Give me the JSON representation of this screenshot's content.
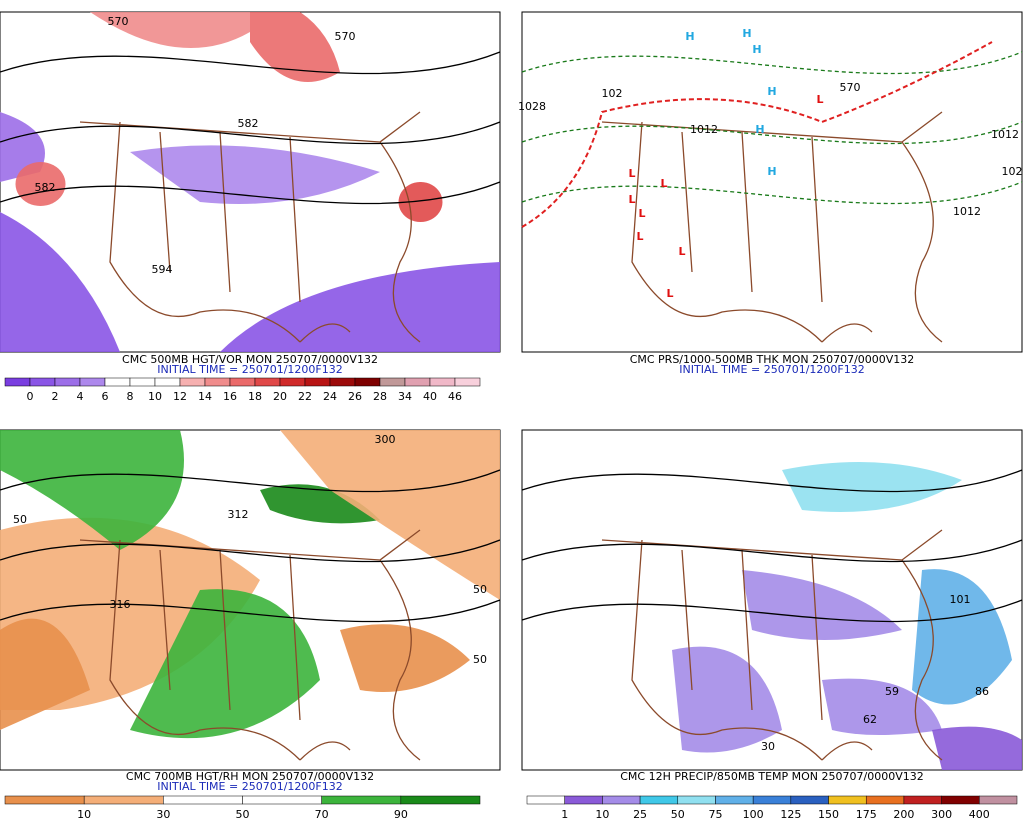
{
  "panels": [
    {
      "caption": "CMC 500MB HGT/VOR MON 250707/0000V132",
      "initial_time": "INITIAL TIME = 250701/1200F132",
      "legend": {
        "labels": [
          0,
          2,
          4,
          6,
          8,
          10,
          12,
          14,
          16,
          18,
          20,
          22,
          24,
          26,
          28,
          34,
          40,
          46
        ],
        "colors": [
          "#7a3ee0",
          "#8a55e6",
          "#9c6ee8",
          "#ad88ec",
          "#ffffff",
          "#ffffff",
          "#ffffff",
          "#f6b0b0",
          "#f08c8c",
          "#ea6a6a",
          "#e04848",
          "#d02a2a",
          "#b81414",
          "#9c0a0a",
          "#7e0000",
          "#c09898",
          "#e0a0b0",
          "#f0b8c8",
          "#f8d0dc"
        ]
      },
      "contour_labels": [
        "570",
        "570",
        "582",
        "582",
        "594"
      ]
    },
    {
      "caption": "CMC PRS/1000-500MB THK MON 250707/0000V132",
      "initial_time": "INITIAL TIME = 250701/1200F132",
      "contour_labels": [
        "1028",
        "102",
        "1012",
        "1012",
        "1012",
        "102",
        "570"
      ],
      "markers": [
        "H",
        "H",
        "H",
        "H",
        "H",
        "H",
        "L",
        "L",
        "L",
        "L",
        "L",
        "L",
        "L",
        "L"
      ]
    },
    {
      "caption": "CMC 700MB HGT/RH MON 250707/0000V132",
      "initial_time": "INITIAL TIME = 250701/1200F132",
      "legend": {
        "labels": [
          10,
          30,
          50,
          70,
          90
        ],
        "colors": [
          "#e8904c",
          "#f4ae78",
          "#ffffff",
          "#ffffff",
          "#3cb43c",
          "#1a8a1a"
        ]
      },
      "contour_labels": [
        "316",
        "50",
        "50",
        "50",
        "300",
        "312"
      ]
    },
    {
      "caption": "CMC 12H PRECIP/850MB TEMP MON 250707/0000V132",
      "legend": {
        "labels": [
          1,
          10,
          25,
          50,
          75,
          100,
          125,
          150,
          175,
          200,
          300,
          400
        ],
        "colors": [
          "#ffffff",
          "#8a5ad8",
          "#a48ce8",
          "#40c8e8",
          "#90e0f0",
          "#60b0e8",
          "#3a80d8",
          "#2a60c0",
          "#f0c020",
          "#e87020",
          "#c02020",
          "#800000",
          "#c090a0"
        ]
      },
      "contour_labels": [
        "59",
        "62",
        "101",
        "86",
        "30"
      ]
    }
  ]
}
